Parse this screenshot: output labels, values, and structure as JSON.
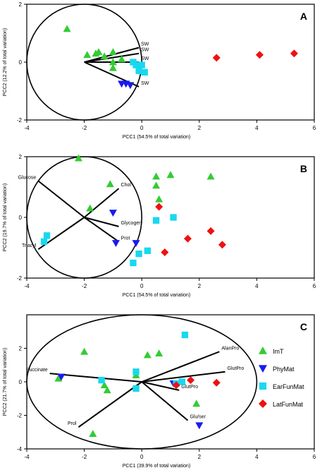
{
  "legend": {
    "placement": "right of panel C",
    "items": [
      {
        "label": "ImT",
        "marker": "triangle-up",
        "color": "#33cc33"
      },
      {
        "label": "PhyMat",
        "marker": "triangle-down",
        "color": "#1a1aee"
      },
      {
        "label": "EarFunMat",
        "marker": "square",
        "color": "#18d8f0"
      },
      {
        "label": "LatFunMat",
        "marker": "diamond",
        "color": "#ee1111"
      }
    ]
  },
  "chart_data": [
    {
      "type": "scatter",
      "panel": "A",
      "xlabel": "PCC1 (54.5% of total variation)",
      "ylabel": "PCC2 (12.2% of total variation)",
      "xlim": [
        -4,
        6
      ],
      "ylim": [
        -2,
        2
      ],
      "xticks": [
        "-4",
        "-2",
        "0",
        "2",
        "4",
        "6"
      ],
      "yticks": [
        "-2",
        "0",
        "2"
      ],
      "circle": {
        "cx": -2,
        "cy": 0,
        "r": 2
      },
      "loadings": [
        {
          "label": "SW",
          "x": -0.1,
          "y": 0.5
        },
        {
          "label": "SW",
          "x": -0.1,
          "y": 0.3
        },
        {
          "label": "SW",
          "x": -0.1,
          "y": 0.0
        },
        {
          "label": "SW",
          "x": -0.1,
          "y": -0.85
        }
      ],
      "series": [
        {
          "name": "ImT",
          "points": [
            [
              -2.6,
              1.15
            ],
            [
              -1.9,
              0.25
            ],
            [
              -1.6,
              0.3
            ],
            [
              -1.3,
              0.2
            ],
            [
              -1.0,
              0.35
            ],
            [
              -1.5,
              0.35
            ],
            [
              -1.0,
              -0.2
            ],
            [
              -0.7,
              0.1
            ],
            [
              -1.0,
              0.0
            ]
          ]
        },
        {
          "name": "PhyMat",
          "points": [
            [
              -0.7,
              -0.75
            ],
            [
              -0.4,
              -0.8
            ],
            [
              -0.55,
              -0.75
            ]
          ]
        },
        {
          "name": "EarFunMat",
          "points": [
            [
              -0.2,
              -0.1
            ],
            [
              -0.1,
              -0.3
            ],
            [
              0.1,
              -0.35
            ],
            [
              -0.3,
              0.0
            ],
            [
              0.0,
              -0.1
            ]
          ]
        },
        {
          "name": "LatFunMat",
          "points": [
            [
              2.6,
              0.15
            ],
            [
              4.1,
              0.25
            ],
            [
              5.3,
              0.3
            ]
          ]
        }
      ]
    },
    {
      "type": "scatter",
      "panel": "B",
      "xlabel": "PCC1 (54.5% of total variation)",
      "ylabel": "PCC2 (19.7% of total variation)",
      "xlim": [
        -4,
        6
      ],
      "ylim": [
        -2,
        2
      ],
      "xticks": [
        "-4",
        "-2",
        "0",
        "2",
        "4",
        "6"
      ],
      "yticks": [
        "-2",
        "0",
        "2"
      ],
      "circle": {
        "cx": -2,
        "cy": 0,
        "r": 2
      },
      "loadings": [
        {
          "label": "Glucose",
          "x": -3.6,
          "y": 1.2
        },
        {
          "label": "Chol",
          "x": -0.8,
          "y": 0.95
        },
        {
          "label": "Glycogen",
          "x": -0.8,
          "y": -0.3
        },
        {
          "label": "Prot",
          "x": -0.8,
          "y": -0.8
        },
        {
          "label": "Triacyl",
          "x": -3.6,
          "y": -1.05
        }
      ],
      "series": [
        {
          "name": "ImT",
          "points": [
            [
              -2.2,
              1.95
            ],
            [
              -1.8,
              0.3
            ],
            [
              -1.1,
              1.1
            ],
            [
              0.5,
              1.35
            ],
            [
              0.5,
              1.05
            ],
            [
              0.6,
              0.6
            ],
            [
              1.0,
              1.4
            ],
            [
              2.4,
              1.35
            ]
          ]
        },
        {
          "name": "PhyMat",
          "points": [
            [
              -1.0,
              0.15
            ],
            [
              -0.9,
              -0.85
            ],
            [
              -0.2,
              -0.85
            ]
          ]
        },
        {
          "name": "EarFunMat",
          "points": [
            [
              -3.3,
              -0.6
            ],
            [
              -3.4,
              -0.8
            ],
            [
              0.5,
              -0.1
            ],
            [
              1.1,
              0.0
            ],
            [
              -0.1,
              -1.2
            ],
            [
              0.2,
              -1.1
            ],
            [
              -0.3,
              -1.5
            ]
          ]
        },
        {
          "name": "LatFunMat",
          "points": [
            [
              0.6,
              0.35
            ],
            [
              0.8,
              -1.15
            ],
            [
              1.6,
              -0.7
            ],
            [
              2.4,
              -0.45
            ],
            [
              2.8,
              -0.9
            ]
          ]
        }
      ]
    },
    {
      "type": "scatter",
      "panel": "C",
      "xlabel": "PCC1 (39.9% of total variation)",
      "ylabel": "PCC2 (21.7% of total variation)",
      "xlim": [
        -4,
        6
      ],
      "ylim": [
        -4,
        4
      ],
      "xticks": [
        "-4",
        "-2",
        "0",
        "2",
        "4",
        "6"
      ],
      "yticks": [
        "-4",
        "-2",
        "0",
        "2"
      ],
      "circle": {
        "cx": 0,
        "cy": 0,
        "r": 4
      },
      "loadings": [
        {
          "label": "Succinate",
          "x": -3.2,
          "y": 0.5
        },
        {
          "label": "AlanPro",
          "x": 2.7,
          "y": 1.8
        },
        {
          "label": "GlutPro",
          "x": 2.9,
          "y": 0.6
        },
        {
          "label": "GlutPro",
          "x": 1.3,
          "y": -0.5
        },
        {
          "label": "Prol",
          "x": -2.2,
          "y": -2.7
        },
        {
          "label": "Glu/ser",
          "x": 1.6,
          "y": -2.3
        }
      ],
      "series": [
        {
          "name": "ImT",
          "points": [
            [
              -2.0,
              1.8
            ],
            [
              0.2,
              1.6
            ],
            [
              0.6,
              1.7
            ],
            [
              -2.9,
              0.2
            ],
            [
              -1.3,
              -0.2
            ],
            [
              -1.2,
              -0.5
            ],
            [
              -0.2,
              0.4
            ],
            [
              1.9,
              -1.3
            ],
            [
              -1.7,
              -3.1
            ]
          ]
        },
        {
          "name": "PhyMat",
          "points": [
            [
              -2.8,
              0.3
            ],
            [
              1.1,
              -0.1
            ],
            [
              2.0,
              -2.6
            ]
          ]
        },
        {
          "name": "EarFunMat",
          "points": [
            [
              -1.4,
              0.1
            ],
            [
              -0.2,
              0.6
            ],
            [
              -0.2,
              -0.4
            ],
            [
              1.5,
              2.8
            ],
            [
              1.2,
              -0.1
            ],
            [
              1.4,
              0.0
            ]
          ]
        },
        {
          "name": "LatFunMat",
          "points": [
            [
              1.2,
              -0.2
            ],
            [
              1.7,
              0.1
            ],
            [
              2.6,
              -0.05
            ]
          ]
        }
      ]
    }
  ]
}
